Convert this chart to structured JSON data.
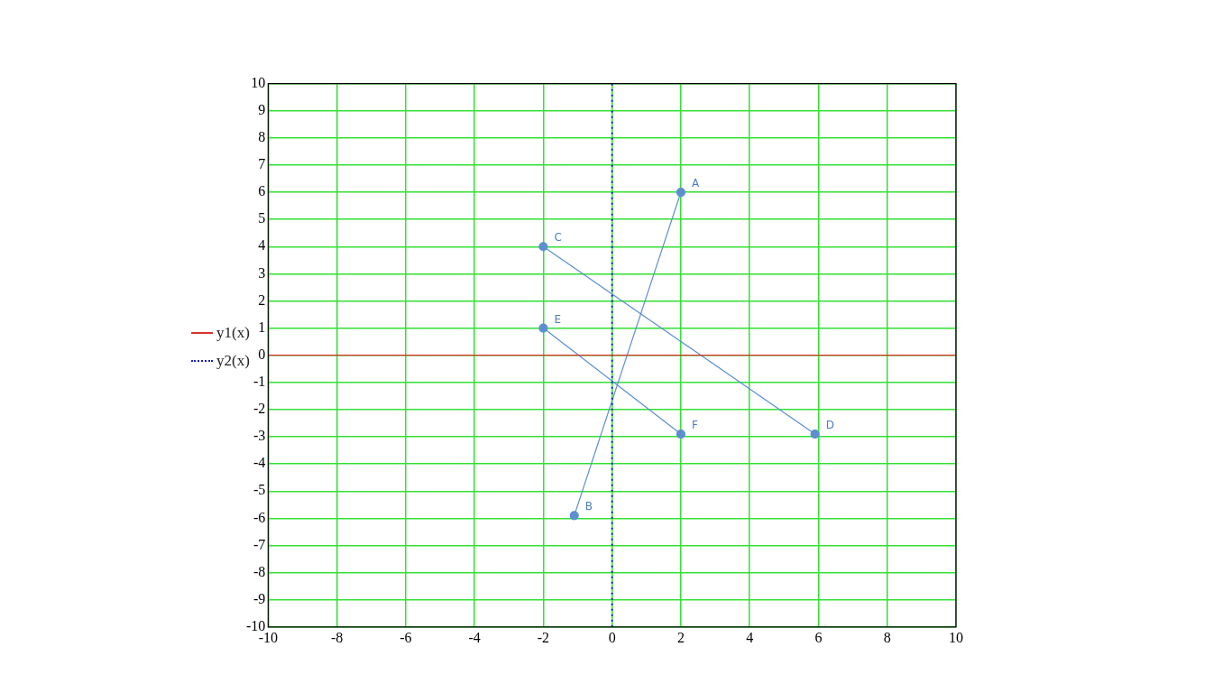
{
  "chart_data": {
    "type": "line",
    "series": [
      {
        "name": "y1(x)",
        "color": "#d9322b",
        "x": [
          -10,
          10
        ],
        "values": [
          0,
          0
        ],
        "marker": "none",
        "line_style": "solid"
      },
      {
        "name": "y2(x)",
        "color": "#1a1acc",
        "x": [
          0,
          0
        ],
        "values": [
          -10,
          10
        ],
        "marker": "none",
        "line_style": "dotted"
      },
      {
        "color": "#5b8fd0",
        "x": [
          2,
          -1.1
        ],
        "values": [
          6,
          -5.9
        ]
      },
      {
        "color": "#5b8fd0",
        "x": [
          -2,
          5.9
        ],
        "values": [
          4,
          -2.9
        ]
      },
      {
        "color": "#5b8fd0",
        "x": [
          -2,
          2
        ],
        "values": [
          1,
          -2.9
        ]
      }
    ],
    "marker": "circle",
    "line_style": "solid",
    "legend": "left",
    "grid": true,
    "xlim": [
      -10,
      10
    ],
    "xticks": [
      -10,
      -8,
      -6,
      -4,
      -2,
      0,
      2,
      4,
      6,
      8,
      10
    ],
    "ylim": [
      -10,
      10
    ],
    "yticks": [
      -10,
      -9,
      -8,
      -7,
      -6,
      -5,
      -4,
      -3,
      -2,
      -1,
      0,
      1,
      2,
      3,
      4,
      5,
      6,
      7,
      8,
      9,
      10
    ],
    "annotations": [
      {
        "text": "A",
        "x": 2,
        "y": 6
      },
      {
        "text": "B",
        "x": -1.1,
        "y": -5.9
      },
      {
        "text": "C",
        "x": -2,
        "y": 4
      },
      {
        "text": "D",
        "x": 5.9,
        "y": -2.9
      },
      {
        "text": "E",
        "x": -2,
        "y": 1
      },
      {
        "text": "F",
        "x": 2,
        "y": -2.9
      }
    ]
  }
}
